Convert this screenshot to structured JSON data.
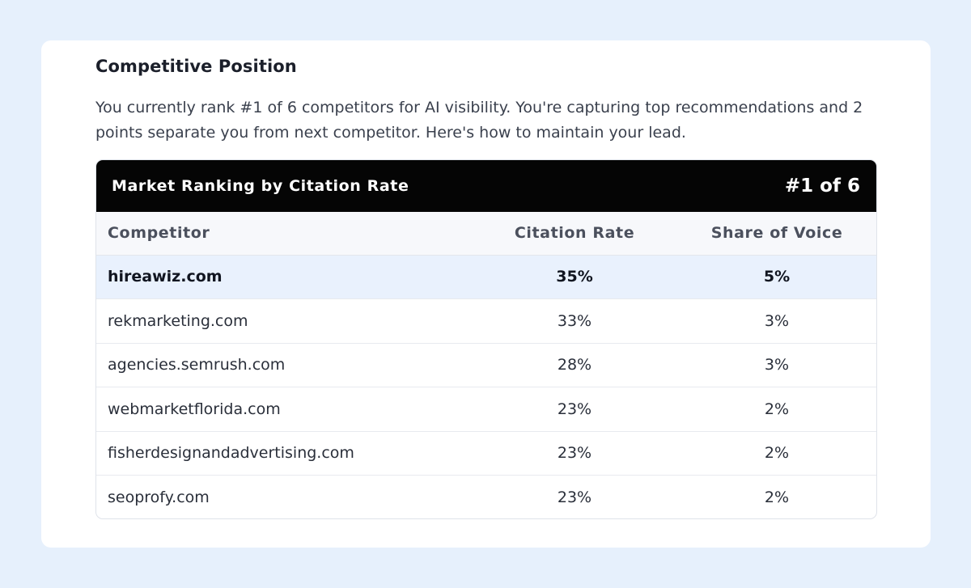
{
  "section": {
    "title": "Competitive Position",
    "summary": "You currently rank #1 of 6 competitors for AI visibility. You're capturing top recommendations and 2 points separate you from next competitor. Here's how to maintain your lead."
  },
  "table": {
    "title": "Market Ranking by Citation Rate",
    "rank_badge": "#1 of 6",
    "columns": [
      "Competitor",
      "Citation Rate",
      "Share of Voice"
    ],
    "rows": [
      {
        "competitor": "hireawiz.com",
        "citation_rate": "35%",
        "share_of_voice": "5%",
        "highlighted": true
      },
      {
        "competitor": "rekmarketing.com",
        "citation_rate": "33%",
        "share_of_voice": "3%",
        "highlighted": false
      },
      {
        "competitor": "agencies.semrush.com",
        "citation_rate": "28%",
        "share_of_voice": "3%",
        "highlighted": false
      },
      {
        "competitor": "webmarketflorida.com",
        "citation_rate": "23%",
        "share_of_voice": "2%",
        "highlighted": false
      },
      {
        "competitor": "fisherdesignandadvertising.com",
        "citation_rate": "23%",
        "share_of_voice": "2%",
        "highlighted": false
      },
      {
        "competitor": "seoprofy.com",
        "citation_rate": "23%",
        "share_of_voice": "2%",
        "highlighted": false
      }
    ]
  },
  "colors": {
    "page_background": "#e6f0fc",
    "card_background": "#ffffff",
    "table_header_background": "#050505",
    "highlight_row_background": "#e9f1fd"
  }
}
